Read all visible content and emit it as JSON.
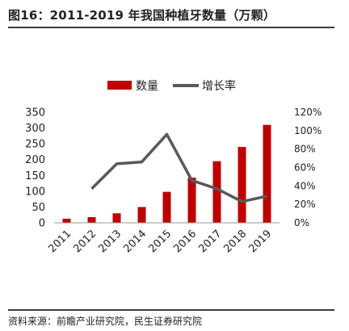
{
  "title": "图16：2011-2019 年我国种植牙数量（万颗）",
  "source": "资料来源：前瞻产业研究院，民生证券研究院",
  "colors": {
    "bar": "#c00000",
    "line": "#595959"
  },
  "chart_data": {
    "type": "bar",
    "categories": [
      "2011",
      "2012",
      "2013",
      "2014",
      "2015",
      "2016",
      "2017",
      "2018",
      "2019"
    ],
    "series": [
      {
        "name": "数量",
        "type": "bar",
        "axis": "left",
        "values": [
          13,
          18,
          30,
          50,
          98,
          143,
          195,
          240,
          310
        ]
      },
      {
        "name": "增长率",
        "type": "line",
        "axis": "right",
        "values": [
          null,
          0.37,
          0.64,
          0.66,
          0.96,
          0.46,
          0.37,
          0.23,
          0.29
        ]
      }
    ],
    "y_left": {
      "ylim": [
        0,
        350
      ],
      "ticks": [
        0,
        50,
        100,
        150,
        200,
        250,
        300,
        350
      ]
    },
    "y_right": {
      "ylim": [
        0,
        1.2
      ],
      "ticks": [
        "0%",
        "20%",
        "40%",
        "60%",
        "80%",
        "100%",
        "120%"
      ]
    },
    "legend_position": "top",
    "grid": false
  }
}
